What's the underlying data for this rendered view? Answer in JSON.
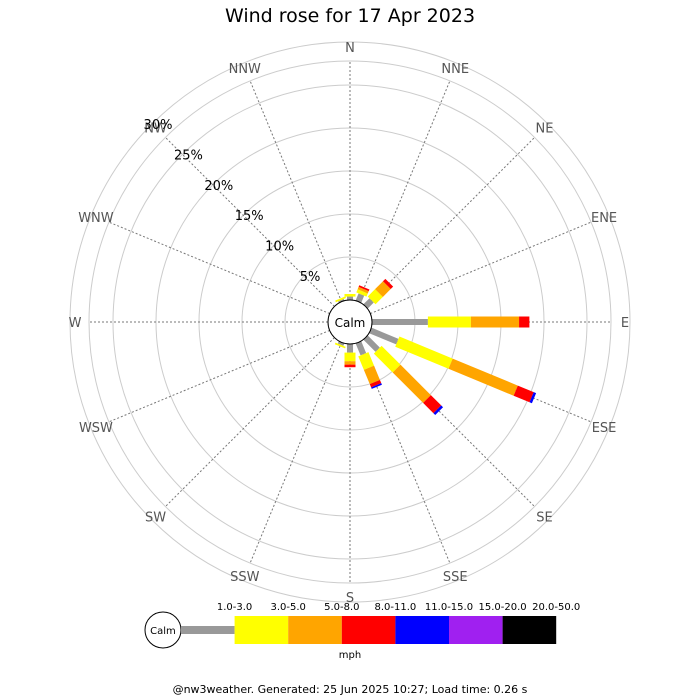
{
  "chart_data": {
    "type": "wind-rose",
    "title": "Wind rose for 17 Apr 2023",
    "calm_label": "Calm",
    "directions": [
      "N",
      "NNE",
      "NE",
      "ENE",
      "E",
      "ESE",
      "SE",
      "SSE",
      "S",
      "SSW",
      "SW",
      "WSW",
      "W",
      "WNW",
      "NW",
      "NNW"
    ],
    "ring_labels": [
      "5%",
      "10%",
      "15%",
      "20%",
      "25%",
      "30%"
    ],
    "rings_percent": [
      5,
      10,
      15,
      20,
      25,
      30
    ],
    "units": "mph",
    "bins": [
      {
        "label": "1.0-3.0",
        "color": "#999999"
      },
      {
        "label": "3.0-5.0",
        "color": "#ffff00"
      },
      {
        "label": "5.0-8.0",
        "color": "#ffa500"
      },
      {
        "label": "8.0-11.0",
        "color": "#ff0000"
      },
      {
        "label": "11.0-15.0",
        "color": "#0000ff"
      },
      {
        "label": "15.0-20.0",
        "color": "#a020f0"
      },
      {
        "label": "20.0-50.0",
        "color": "#000000"
      }
    ],
    "sectors": [
      {
        "direction": "N",
        "values": [
          0.4,
          0.3,
          0,
          0,
          0,
          0,
          0
        ]
      },
      {
        "direction": "NNE",
        "values": [
          0.9,
          0.4,
          0.3,
          0.2,
          0,
          0,
          0
        ]
      },
      {
        "direction": "NE",
        "values": [
          1.0,
          1.2,
          1.3,
          0.4,
          0,
          0,
          0
        ]
      },
      {
        "direction": "ENE",
        "values": [
          0,
          0,
          0,
          0,
          0,
          0,
          0
        ]
      },
      {
        "direction": "E",
        "values": [
          6.5,
          5.0,
          5.6,
          1.2,
          0,
          0,
          0
        ]
      },
      {
        "direction": "ESE",
        "values": [
          3.4,
          6.7,
          8.2,
          2.0,
          0.3,
          0,
          0
        ]
      },
      {
        "direction": "SE",
        "values": [
          2.0,
          3.1,
          5.0,
          1.7,
          0.3,
          0,
          0
        ]
      },
      {
        "direction": "SSE",
        "values": [
          1.5,
          1.7,
          1.8,
          0.4,
          0.2,
          0,
          0
        ]
      },
      {
        "direction": "S",
        "values": [
          1.0,
          1.0,
          0.4,
          0.3,
          0,
          0,
          0
        ]
      },
      {
        "direction": "SSW",
        "values": [
          0.3,
          0.2,
          0,
          0,
          0,
          0,
          0
        ]
      },
      {
        "direction": "SW",
        "values": [
          0,
          0,
          0,
          0,
          0,
          0,
          0
        ]
      },
      {
        "direction": "WSW",
        "values": [
          0,
          0,
          0,
          0,
          0,
          0,
          0
        ]
      },
      {
        "direction": "W",
        "values": [
          0,
          0,
          0,
          0,
          0,
          0,
          0
        ]
      },
      {
        "direction": "WNW",
        "values": [
          0,
          0,
          0,
          0,
          0,
          0,
          0
        ]
      },
      {
        "direction": "NW",
        "values": [
          0,
          0,
          0,
          0,
          0,
          0,
          0
        ]
      },
      {
        "direction": "NNW",
        "values": [
          0.2,
          0.2,
          0,
          0,
          0,
          0,
          0
        ]
      }
    ],
    "grid": true,
    "legend_position": "bottom"
  },
  "footer": "@nw3weather. Generated: 25 Jun 2025 10:27; Load time: 0.26 s"
}
